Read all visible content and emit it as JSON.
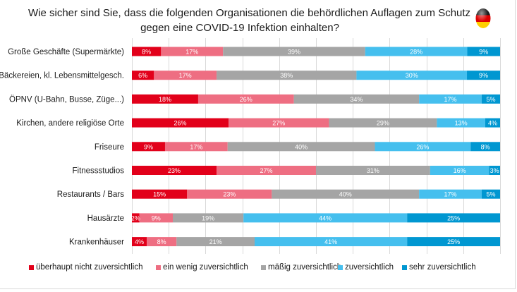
{
  "chart_data": {
    "type": "bar",
    "orientation": "horizontal",
    "stacked": true,
    "title": "Wie sicher sind Sie, dass die folgenden Organisationen die behördlichen Auflagen zum Schutz gegen eine  COVID-19 Infektion einhalten?",
    "title_lines": [
      "Wie sicher sind Sie, dass die folgenden Organisationen die behördlichen Auflagen zum Schutz",
      "gegen eine  COVID-19 Infektion einhalten?"
    ],
    "xlabel": "",
    "ylabel": "",
    "xlim": [
      0,
      100
    ],
    "grid": true,
    "grid_step": 10,
    "legend_position": "bottom",
    "categories": [
      "Große Geschäfte (Supermärkte)",
      "Bäckereien, kl. Lebensmittelgesch.",
      "ÖPNV (U-Bahn, Busse, Züge...)",
      "Kirchen, andere religiöse Orte",
      "Friseure",
      "Fitnessstudios",
      "Restaurants / Bars",
      "Hausärzte",
      "Krankenhäuser"
    ],
    "series": [
      {
        "name": "überhaupt nicht zuversichtlich",
        "color": "#E2001A",
        "values": [
          8,
          6,
          18,
          26,
          9,
          23,
          15,
          2,
          4
        ]
      },
      {
        "name": "ein wenig zuversichtlich",
        "color": "#EE6E82",
        "values": [
          17,
          17,
          26,
          27,
          17,
          27,
          23,
          9,
          8
        ]
      },
      {
        "name": "mäßig zuversichtlich",
        "color": "#A5A5A5",
        "values": [
          39,
          38,
          34,
          29,
          40,
          31,
          40,
          19,
          21
        ]
      },
      {
        "name": "zuversichtlich",
        "color": "#45BFEE",
        "values": [
          28,
          30,
          17,
          13,
          26,
          16,
          17,
          44,
          41
        ]
      },
      {
        "name": "sehr zuversichtlich",
        "color": "#0097D1",
        "values": [
          9,
          9,
          5,
          4,
          8,
          3,
          5,
          25,
          25
        ]
      }
    ],
    "value_label_suffix": "%"
  },
  "flag_icon": "germany-flag-icon"
}
